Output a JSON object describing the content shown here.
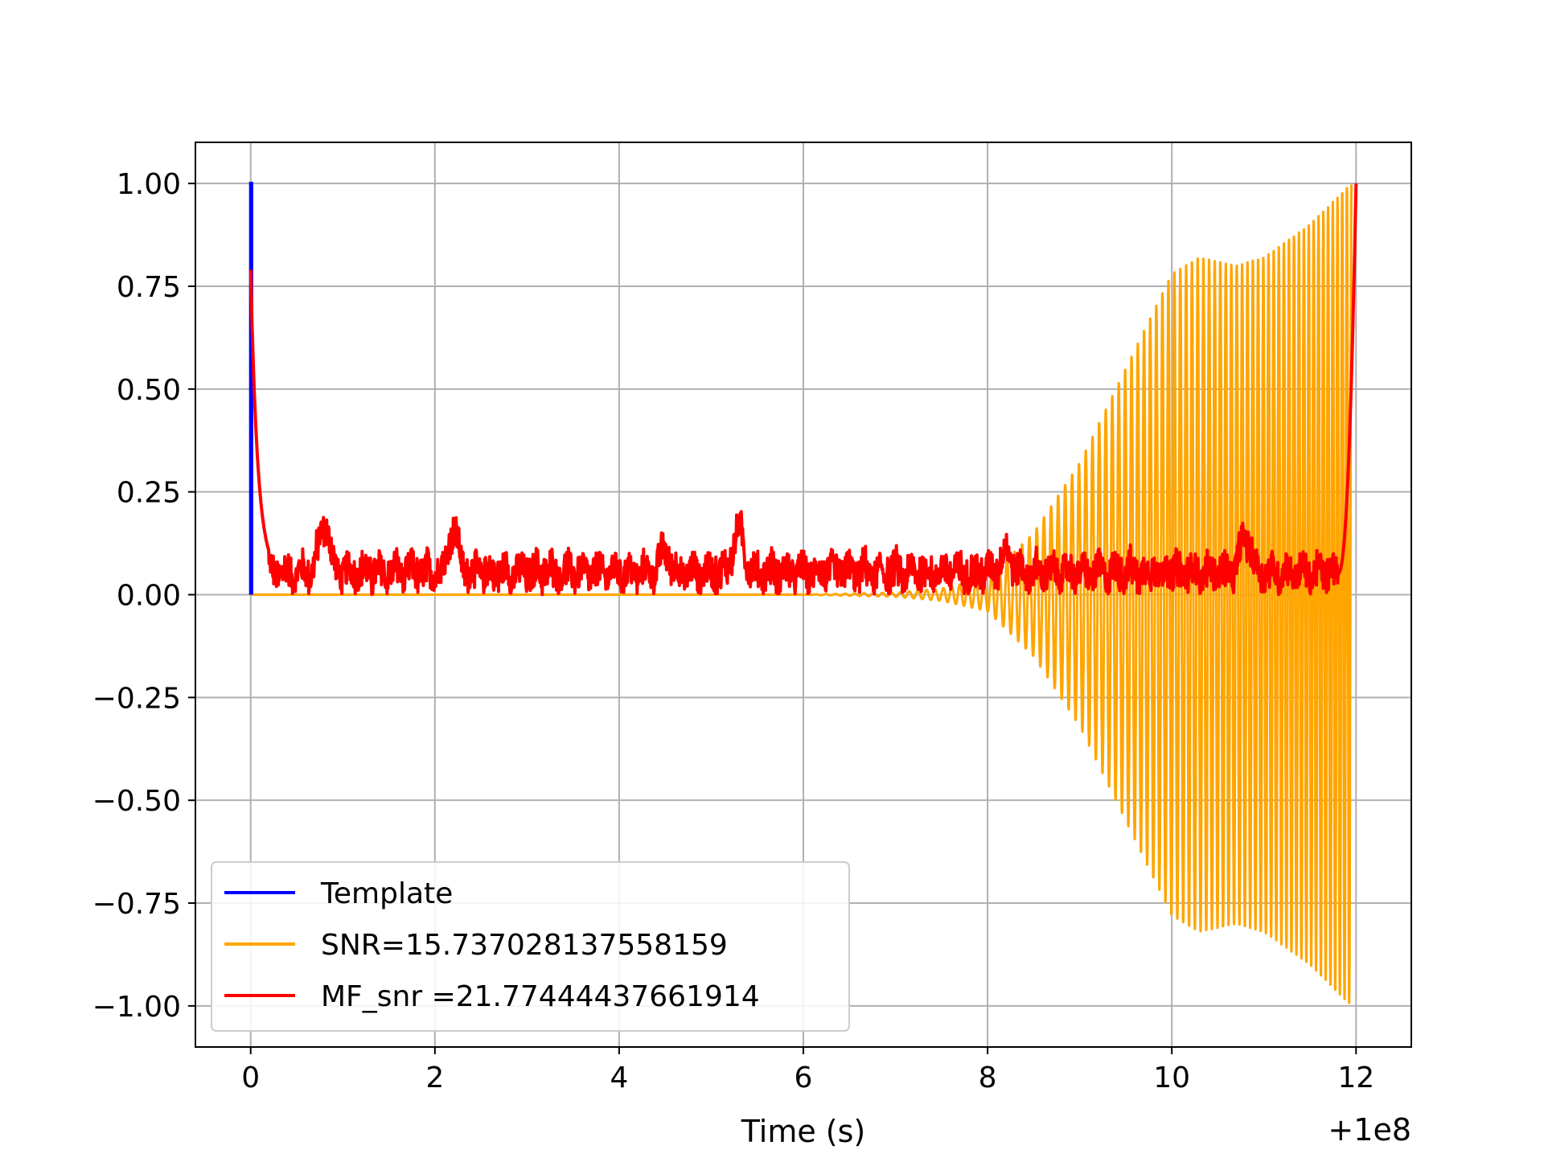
{
  "chart_data": {
    "type": "line",
    "title": "",
    "xlabel": "Time (s)",
    "ylabel": "",
    "x_offset_label": "+1e8",
    "xlim": [
      -0.6,
      12.6
    ],
    "ylim": [
      -1.1,
      1.1
    ],
    "x_ticks": [
      0,
      2,
      4,
      6,
      8,
      10,
      12
    ],
    "x_tick_labels": [
      "0",
      "2",
      "4",
      "6",
      "8",
      "10",
      "12"
    ],
    "y_ticks": [
      1.0,
      0.75,
      0.5,
      0.25,
      0.0,
      -0.25,
      -0.5,
      -0.75,
      -1.0
    ],
    "y_tick_labels": [
      "1.00",
      "0.75",
      "0.50",
      "0.25",
      "0.00",
      "−0.25",
      "−0.50",
      "−0.75",
      "−1.00"
    ],
    "grid": true,
    "legend_position": "lower-left",
    "series": [
      {
        "name": "Template",
        "color": "#0000ff",
        "description_points": [
          [
            0.0,
            0.0
          ],
          [
            0.0,
            1.0
          ],
          [
            0.01,
            1.0
          ],
          [
            0.01,
            0.0
          ]
        ]
      },
      {
        "name": "SNR=15.737028137558159",
        "color": "#ffa500",
        "envelope": {
          "x": [
            0,
            6.0,
            7.0,
            7.5,
            8.0,
            8.5,
            9.0,
            9.5,
            10.0,
            10.3,
            10.7,
            11.0,
            11.5,
            11.95
          ],
          "amplitude": [
            0.0,
            0.0,
            0.005,
            0.015,
            0.04,
            0.15,
            0.32,
            0.55,
            0.78,
            0.82,
            0.8,
            0.82,
            0.9,
            1.0
          ]
        }
      },
      {
        "name": "MF_snr =21.77444437661914",
        "color": "#ff0000",
        "key_points": {
          "x": [
            0.0,
            0.05,
            0.1,
            0.15,
            0.2,
            0.8,
            2.2,
            5.3,
            8.0,
            10.8,
            11.8,
            11.9,
            12.0
          ],
          "y": [
            0.74,
            0.65,
            0.45,
            0.2,
            0.05,
            0.2,
            0.17,
            0.18,
            0.08,
            0.17,
            0.05,
            0.35,
            1.0
          ]
        },
        "noise_level_mean": 0.07,
        "noise_level_max": 0.2
      }
    ]
  }
}
